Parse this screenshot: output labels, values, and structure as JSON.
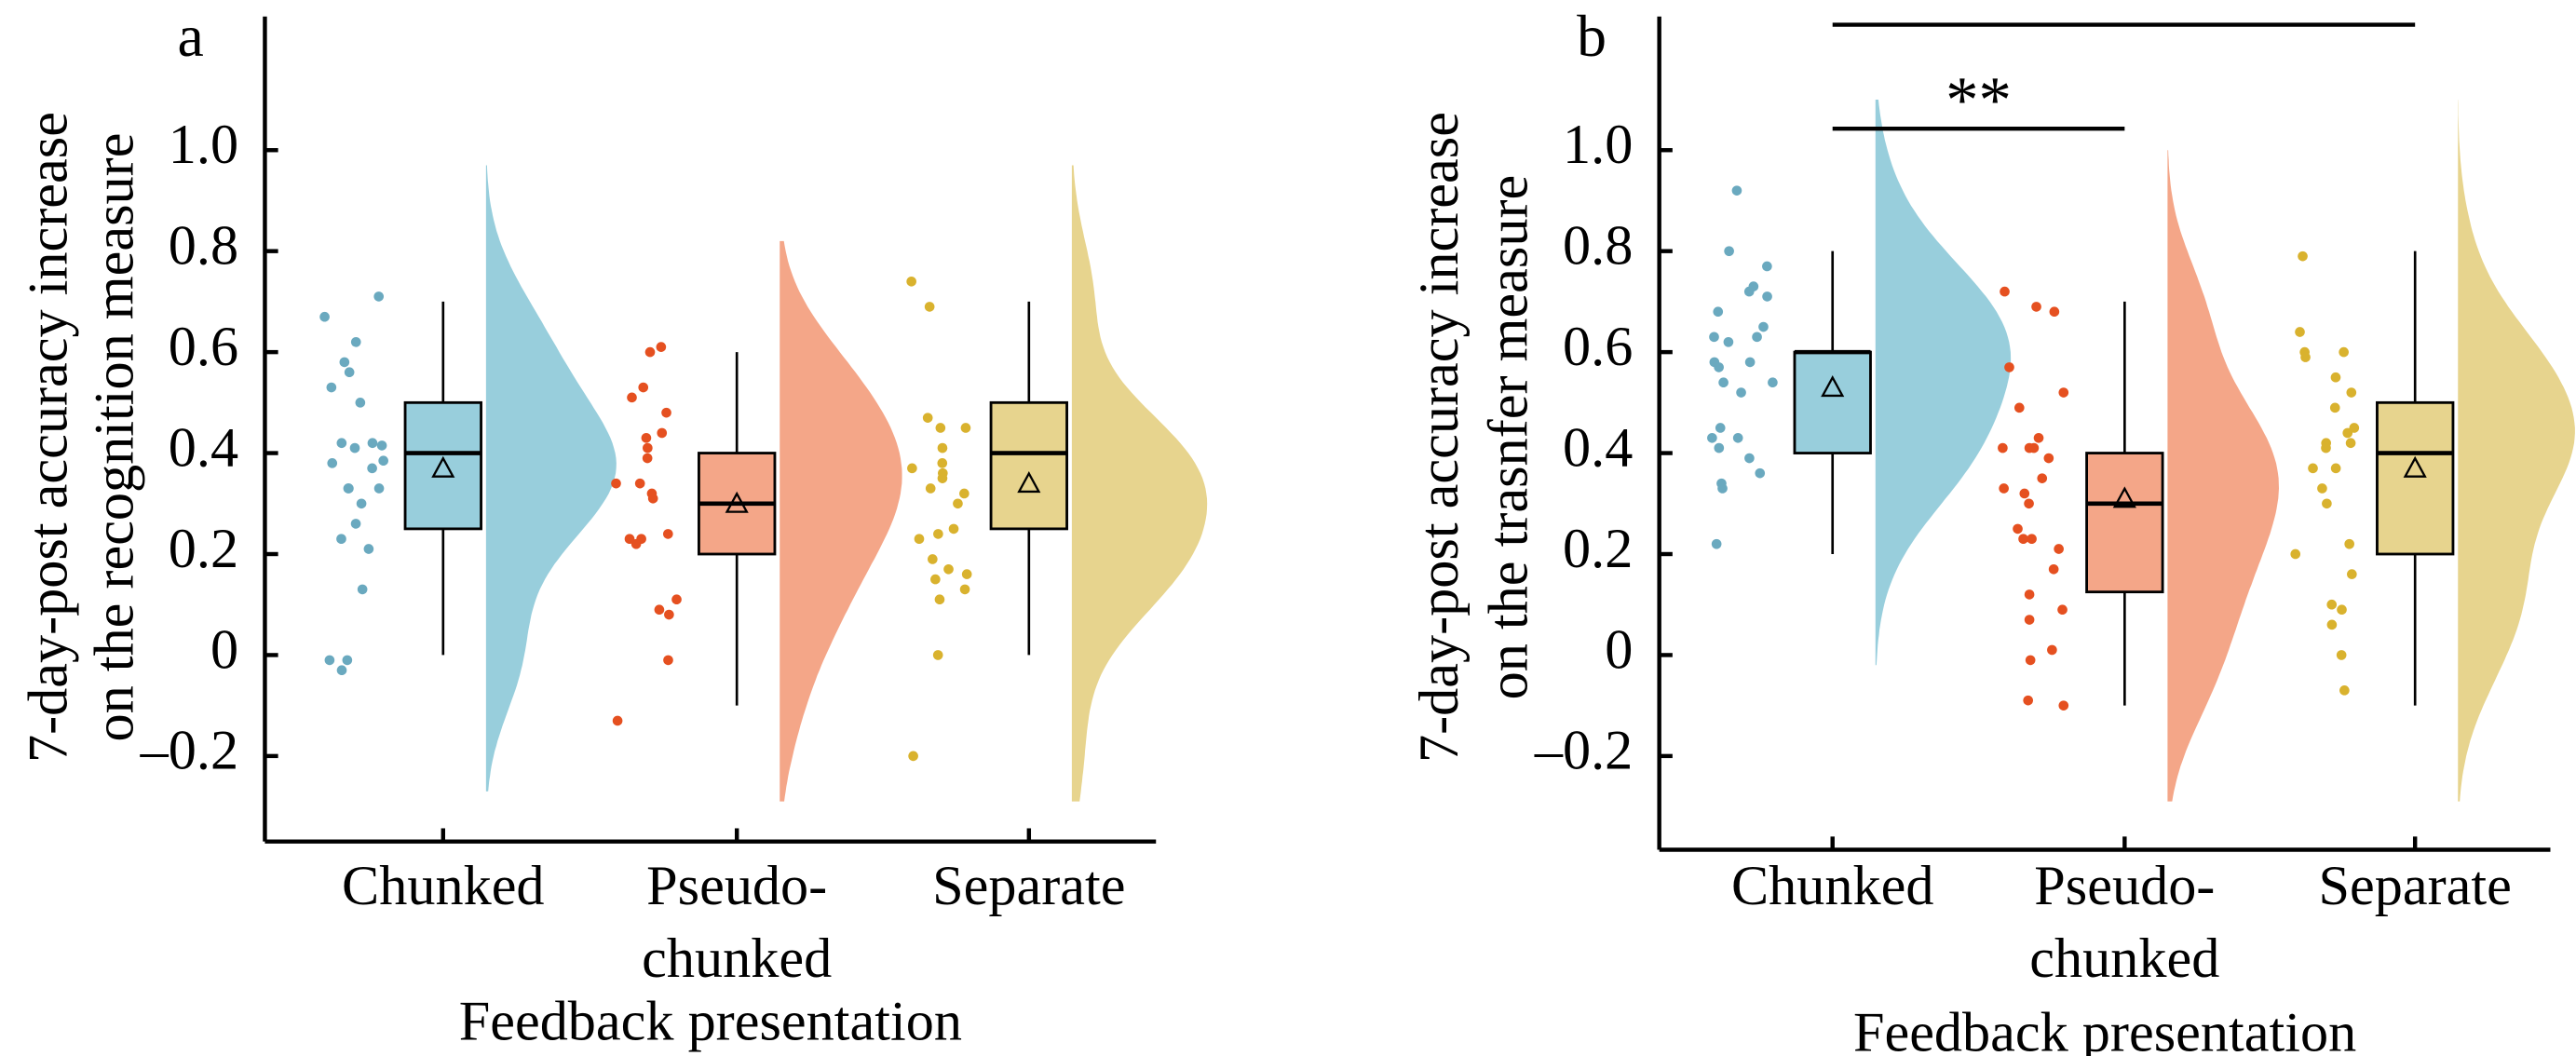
{
  "chart_data": [
    {
      "type": "raincloud",
      "panel_label": "a",
      "ylabel": [
        "7-day-post accuracy increase",
        "on the recognition measure"
      ],
      "xlabel": "Feedback presentation",
      "ylim": [
        -0.33,
        1.15
      ],
      "yticks": [
        -0.2,
        0,
        0.2,
        0.4,
        0.6,
        0.8,
        1.0
      ],
      "ytick_labels": [
        "–0.2",
        "0",
        "0.2",
        "0.4",
        "0.6",
        "0.8",
        "1.0"
      ],
      "categories": [
        {
          "label": [
            "Chunked"
          ],
          "point_color": "#6aa9bf",
          "fill_color": "#98cedc",
          "box": {
            "min": 0.0,
            "q1": 0.25,
            "median": 0.4,
            "q3": 0.5,
            "max": 0.7,
            "mean": 0.37
          },
          "kde_range": [
            -0.27,
            0.97
          ],
          "points": [
            0.71,
            0.67,
            0.62,
            0.58,
            0.56,
            0.5,
            0.53,
            0.42,
            0.41,
            0.415,
            0.42,
            0.38,
            0.385,
            0.37,
            0.33,
            0.33,
            0.33,
            0.3,
            0.23,
            0.21,
            0.26,
            0.13,
            -0.01,
            -0.01,
            -0.03
          ]
        },
        {
          "label": [
            "Pseudo-",
            "chunked"
          ],
          "point_color": "#e55020",
          "fill_color": "#f4a688",
          "box": {
            "min": -0.1,
            "q1": 0.2,
            "median": 0.3,
            "q3": 0.4,
            "max": 0.6,
            "mean": 0.3
          },
          "kde_range": [
            -0.29,
            0.82
          ],
          "points": [
            0.61,
            0.6,
            0.53,
            0.51,
            0.48,
            0.44,
            0.43,
            0.41,
            0.39,
            0.34,
            0.32,
            0.31,
            0.34,
            0.24,
            0.22,
            0.23,
            0.23,
            0.11,
            0.09,
            0.08,
            -0.01,
            -0.13
          ]
        },
        {
          "label": [
            "Separate"
          ],
          "point_color": "#d9b22e",
          "fill_color": "#e7d48e",
          "box": {
            "min": 0.0,
            "q1": 0.25,
            "median": 0.4,
            "q3": 0.5,
            "max": 0.7,
            "mean": 0.34
          },
          "kde_range": [
            -0.29,
            0.97
          ],
          "points": [
            0.74,
            0.69,
            0.47,
            0.45,
            0.45,
            0.41,
            0.38,
            0.36,
            0.35,
            0.33,
            0.32,
            0.3,
            0.23,
            0.25,
            0.17,
            0.16,
            0.15,
            0.13,
            0.24,
            0.11,
            0.0,
            -0.2,
            0.37,
            0.19
          ]
        }
      ],
      "significance": []
    },
    {
      "type": "raincloud",
      "panel_label": "b",
      "ylabel": [
        "7-day-post accuracy increase",
        "on the trasnfer measure"
      ],
      "xlabel": "Feedback presentation",
      "ylim": [
        -0.35,
        1.15
      ],
      "yticks": [
        -0.2,
        0,
        0.2,
        0.4,
        0.6,
        0.8,
        1.0
      ],
      "ytick_labels": [
        "–0.2",
        "0",
        "0.2",
        "0.4",
        "0.6",
        "0.8",
        "1.0"
      ],
      "categories": [
        {
          "label": [
            "Chunked"
          ],
          "point_color": "#6aa9bf",
          "fill_color": "#98cedc",
          "box": {
            "min": 0.2,
            "q1": 0.4,
            "median": 0.6,
            "q3": 0.6,
            "max": 0.8,
            "mean": 0.53
          },
          "kde_range": [
            -0.02,
            1.1
          ],
          "points": [
            0.92,
            0.8,
            0.77,
            0.72,
            0.71,
            0.73,
            0.68,
            0.65,
            0.63,
            0.62,
            0.63,
            0.58,
            0.57,
            0.58,
            0.54,
            0.52,
            0.43,
            0.45,
            0.43,
            0.41,
            0.39,
            0.36,
            0.33,
            0.34,
            0.22,
            0.54
          ]
        },
        {
          "label": [
            "Pseudo-",
            "chunked"
          ],
          "point_color": "#e55020",
          "fill_color": "#f4a688",
          "box": {
            "min": -0.1,
            "q1": 0.125,
            "median": 0.3,
            "q3": 0.4,
            "max": 0.7,
            "mean": 0.31
          },
          "kde_range": [
            -0.29,
            1.0
          ],
          "points": [
            0.68,
            0.69,
            0.72,
            0.57,
            0.49,
            0.52,
            0.41,
            0.41,
            0.41,
            0.43,
            0.39,
            0.35,
            0.33,
            0.3,
            0.32,
            0.25,
            0.23,
            0.23,
            0.21,
            0.17,
            0.12,
            0.09,
            0.07,
            0.01,
            -0.01,
            -0.1,
            -0.09
          ]
        },
        {
          "label": [
            "Separate"
          ],
          "point_color": "#d9b22e",
          "fill_color": "#e7d48e",
          "box": {
            "min": -0.1,
            "q1": 0.2,
            "median": 0.4,
            "q3": 0.5,
            "max": 0.8,
            "mean": 0.37
          },
          "kde_range": [
            -0.29,
            1.1
          ],
          "points": [
            0.79,
            0.64,
            0.6,
            0.59,
            0.6,
            0.55,
            0.52,
            0.49,
            0.45,
            0.44,
            0.42,
            0.42,
            0.41,
            0.37,
            0.37,
            0.3,
            0.33,
            0.2,
            0.22,
            0.16,
            0.1,
            0.09,
            0.06,
            0.0,
            -0.07
          ]
        }
      ],
      "significance": [
        {
          "from": 0,
          "to": 1,
          "label": "**"
        },
        {
          "from": 0,
          "to": 2,
          "label": "*"
        }
      ]
    }
  ]
}
